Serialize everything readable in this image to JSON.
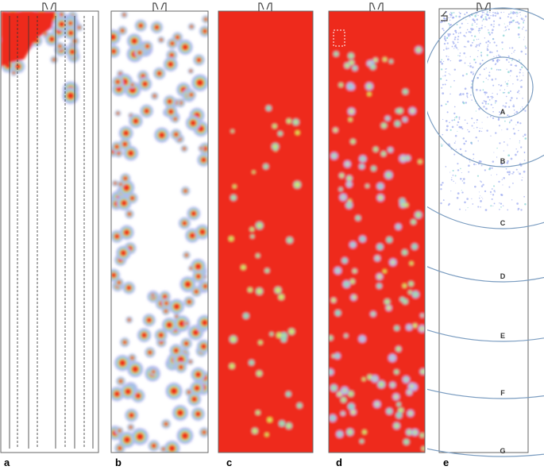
{
  "panels": [
    {
      "label": "a"
    },
    {
      "label": "b"
    },
    {
      "label": "c"
    },
    {
      "label": "d"
    },
    {
      "label": "e"
    }
  ],
  "zones": [
    "A",
    "B",
    "C",
    "D",
    "E",
    "F",
    "G"
  ]
}
